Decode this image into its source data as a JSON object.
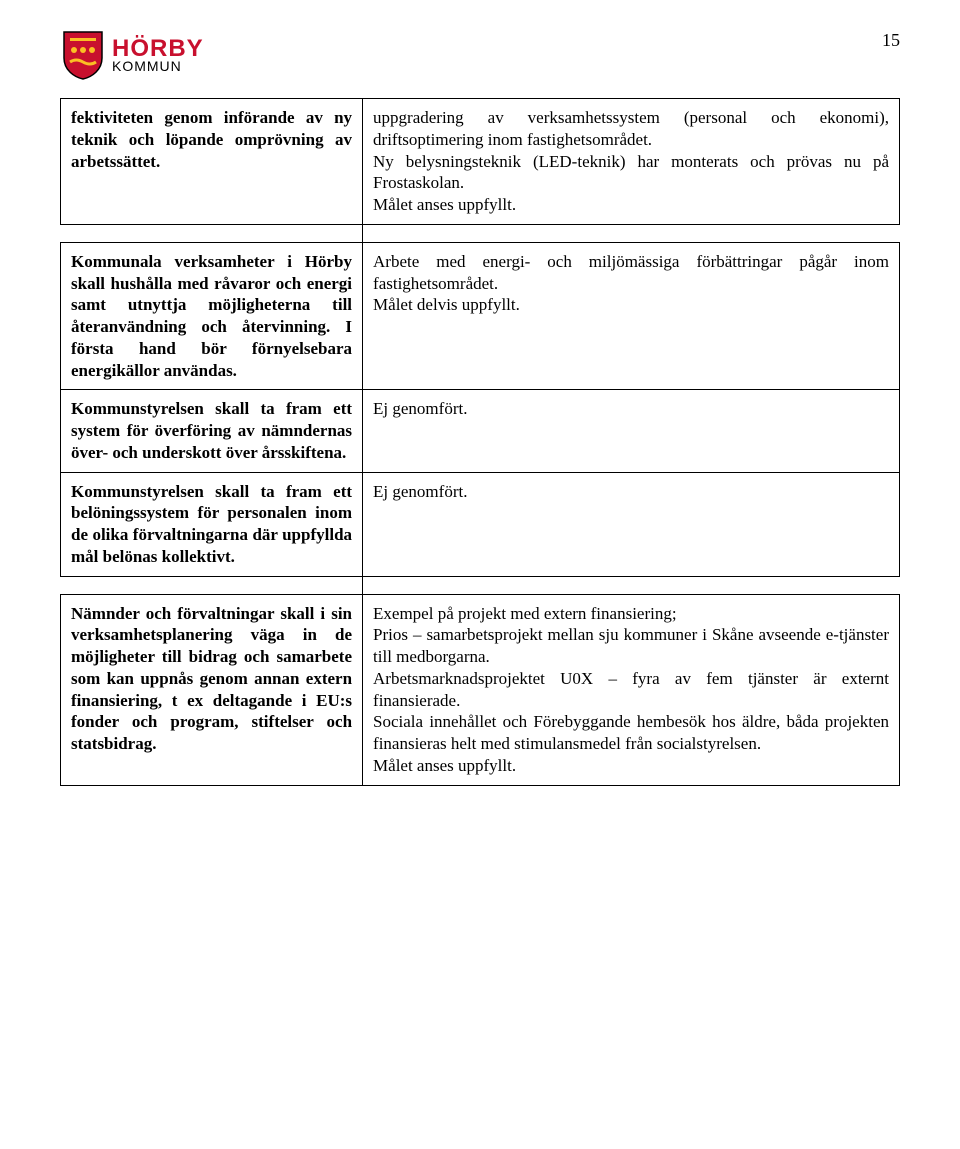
{
  "header": {
    "logo_top": "HÖRBY",
    "logo_bottom": "KOMMUN",
    "page_number": "15"
  },
  "logo": {
    "shield_fill": "#c8102e",
    "shield_stroke": "#000000"
  },
  "rows": [
    {
      "left": "fektiviteten genom införande av ny teknik och löpande omprövning av arbetssättet.",
      "right": "uppgradering av verksamhetssystem (personal och ekonomi), driftsoptimering inom fastighetsområdet.\nNy belysningsteknik (LED-teknik) har monterats och prövas nu på Frostaskolan.\nMålet anses uppfyllt."
    },
    {
      "left": "Kommunala verksamheter i Hörby skall hushålla med råvaror och energi samt utnyttja möjligheterna till återanvändning och återvinning. I första hand bör förnyelsebara energikällor användas.",
      "right": "Arbete med energi- och miljömässiga förbättringar pågår inom fastighetsområdet.\nMålet delvis uppfyllt."
    },
    {
      "left": "Kommunstyrelsen skall ta fram ett system för överföring av nämndernas över- och underskott över årsskiftena.",
      "right": "Ej genomfört."
    },
    {
      "left": "Kommunstyrelsen skall ta fram ett belöningssystem för personalen inom de olika förvaltningarna där uppfyllda mål belönas kollektivt.",
      "right": "Ej genomfört."
    },
    {
      "left": "Nämnder och förvaltningar skall i sin verksamhetsplanering väga in de möjligheter till bidrag och samarbete som kan uppnås genom annan extern finansiering, t ex deltagande i EU:s fonder och program, stiftelser och statsbidrag.",
      "right": "Exempel på projekt med extern finansiering;\nPrios – samarbetsprojekt mellan sju kommuner i Skåne avseende e-tjänster till medborgarna.\nArbetsmarknadsprojektet U0X – fyra av fem tjänster är externt finansierade.\nSociala innehållet och Förebyggande hembesök hos äldre, båda projekten finansieras helt med stimulansmedel från socialstyrelsen.\nMålet anses uppfyllt."
    }
  ]
}
